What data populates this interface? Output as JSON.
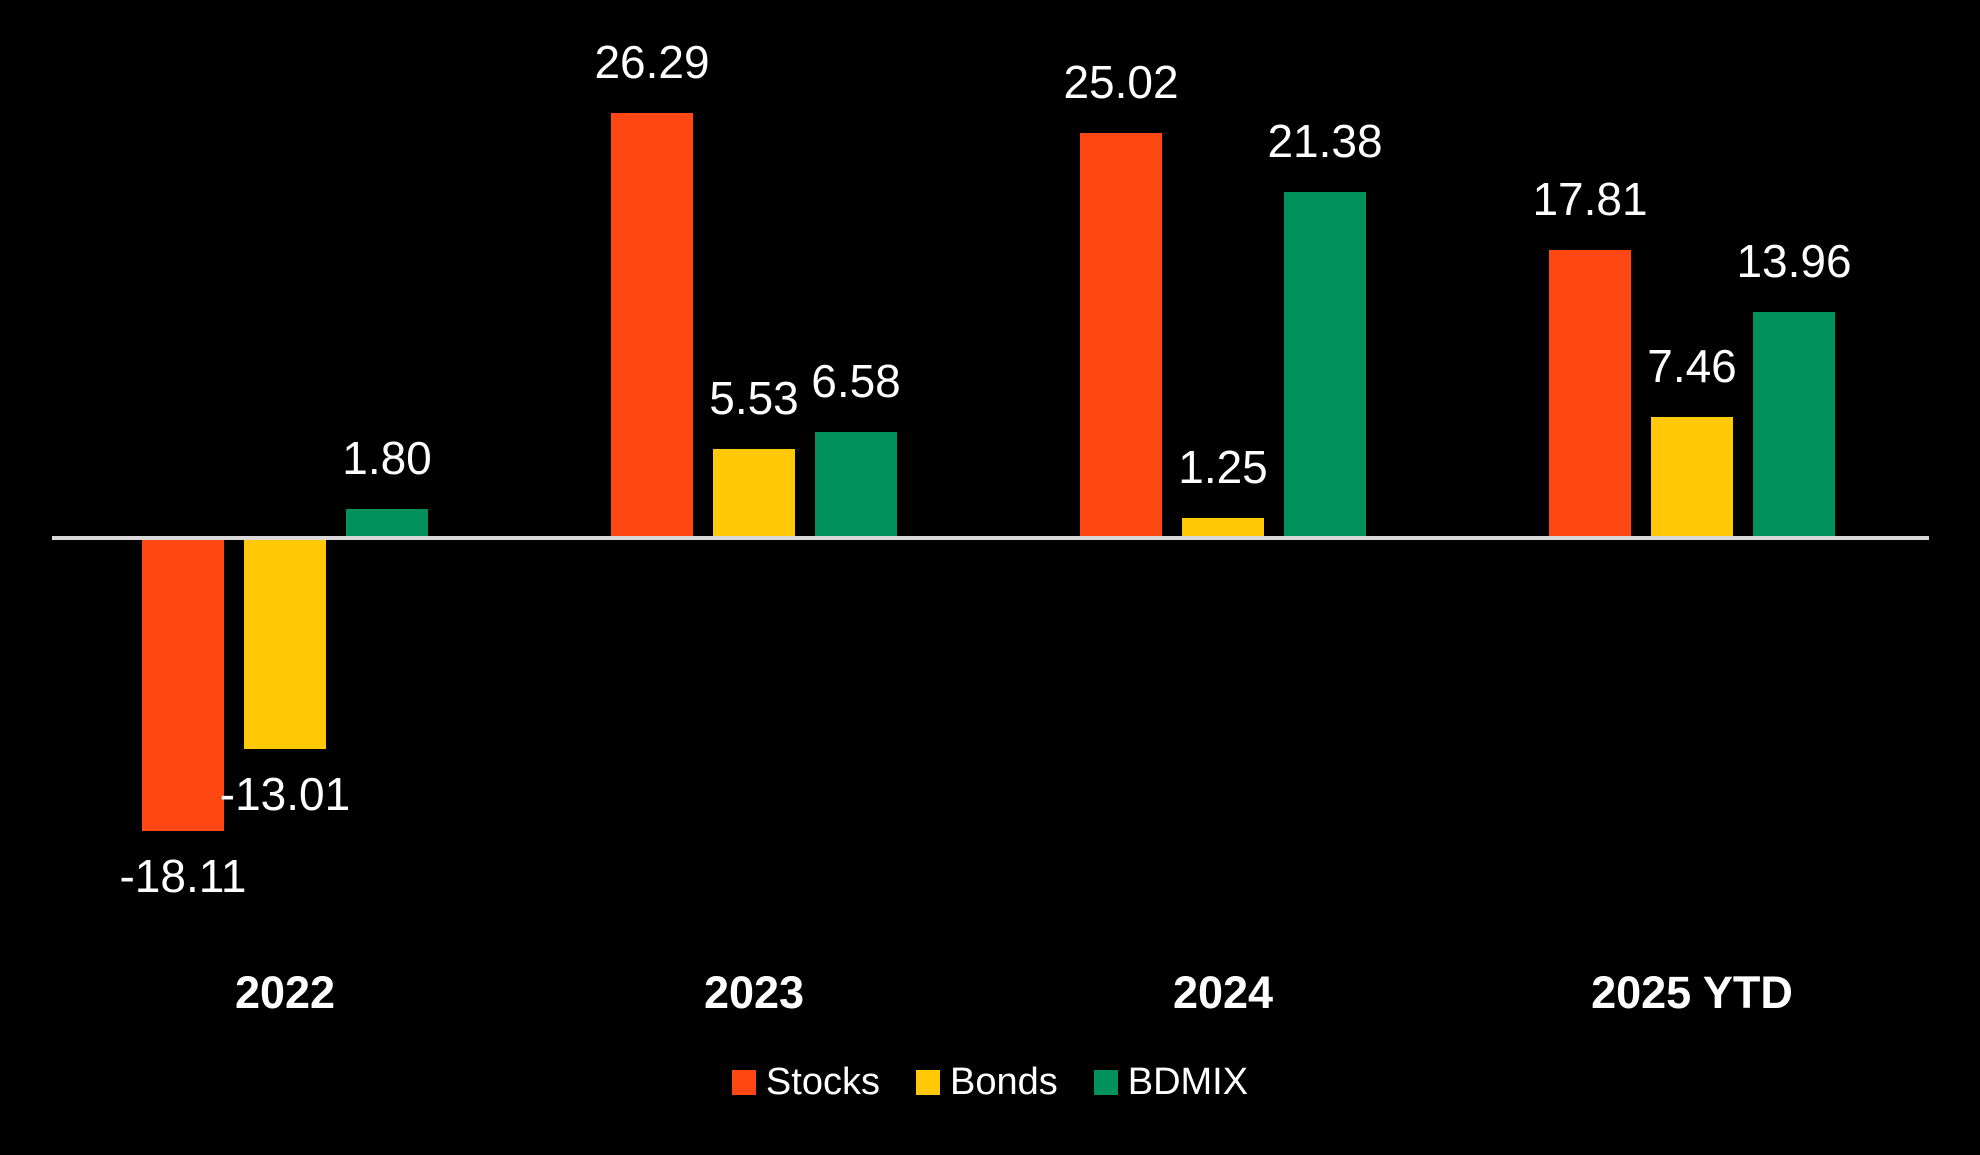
{
  "chart_data": {
    "type": "bar",
    "title": "",
    "xlabel": "",
    "ylabel": "",
    "categories": [
      "2022",
      "2023",
      "2024",
      "2025 YTD"
    ],
    "series": [
      {
        "name": "Stocks",
        "color": "#FF4713",
        "values": [
          -18.11,
          26.29,
          25.02,
          17.81
        ]
      },
      {
        "name": "Bonds",
        "color": "#FFC907",
        "values": [
          -13.01,
          5.53,
          1.25,
          7.46
        ]
      },
      {
        "name": "BDMIX",
        "color": "#00915C",
        "values": [
          1.8,
          6.58,
          21.38,
          13.96
        ]
      }
    ],
    "value_labels": {
      "visible": true,
      "decimals": 2,
      "color": "#FFFFFF"
    },
    "ylim": [
      -20,
      28
    ],
    "grid": false,
    "y_axis_visible": false,
    "baseline": {
      "value": 0,
      "color": "#D9D9D9"
    },
    "legend_position": "bottom",
    "background_color": "#000000",
    "text_color": "#FFFFFF"
  }
}
